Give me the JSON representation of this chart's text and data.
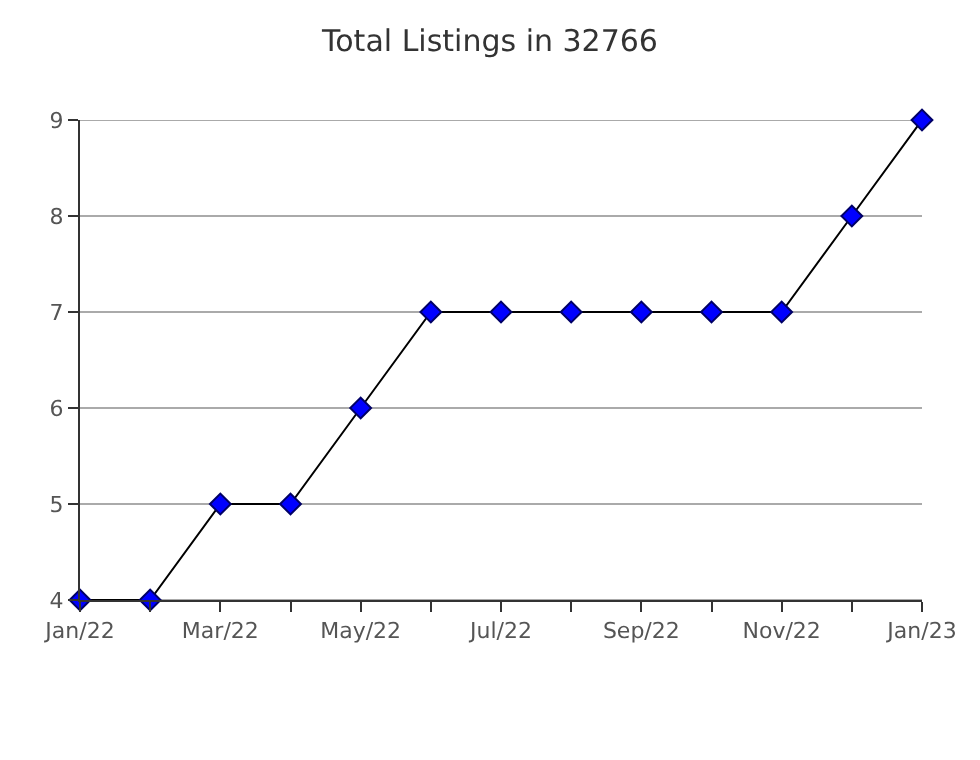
{
  "chart_data": {
    "type": "line",
    "title": "Total Listings in 32766",
    "categories": [
      "Jan/22",
      null,
      "Mar/22",
      null,
      "May/22",
      null,
      "Jul/22",
      null,
      "Sep/22",
      null,
      "Nov/22",
      null,
      "Jan/23"
    ],
    "series": [
      {
        "color": "#0000ff",
        "values": [
          4,
          4,
          5,
          5,
          6,
          7,
          7,
          7,
          7,
          7,
          7,
          8,
          9
        ]
      }
    ],
    "ylim": [
      4,
      9
    ],
    "yticks": [
      4,
      5,
      6,
      7,
      8,
      9
    ],
    "grid": "y",
    "marker": "diamond",
    "legend": false
  }
}
